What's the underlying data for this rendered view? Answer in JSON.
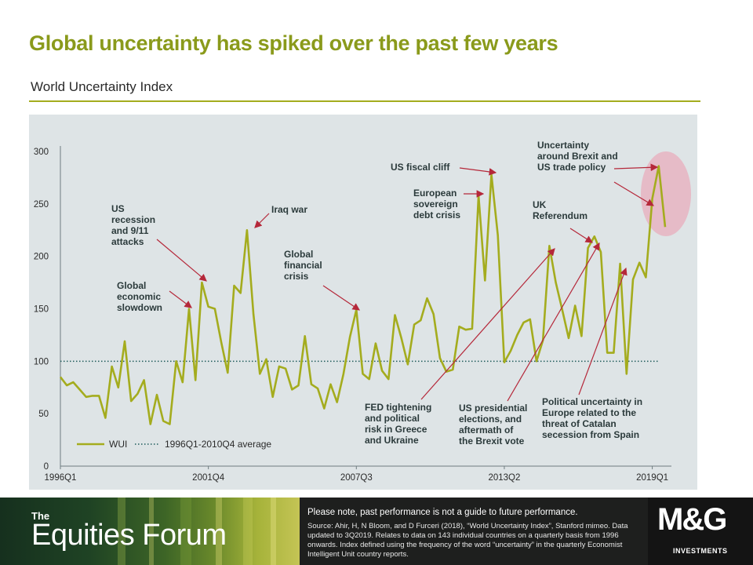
{
  "header": {
    "title": "Global uncertainty has spiked over the past few years",
    "subtitle": "World Uncertainty Index"
  },
  "chart_data": {
    "type": "line",
    "xlabel": "",
    "ylabel": "",
    "ylim": [
      0,
      300
    ],
    "yticks": [
      0,
      50,
      100,
      150,
      200,
      250,
      300
    ],
    "x_tick_labels": [
      {
        "index": 0,
        "label": "1996Q1"
      },
      {
        "index": 23,
        "label": "2001Q4"
      },
      {
        "index": 46,
        "label": "2007Q3"
      },
      {
        "index": 69,
        "label": "2013Q2"
      },
      {
        "index": 92,
        "label": "2019Q1"
      }
    ],
    "series": [
      {
        "name": "WUI",
        "color": "#a4ac1e",
        "values": [
          85,
          77,
          80,
          73,
          66,
          67,
          67,
          46,
          95,
          75,
          119,
          62,
          69,
          82,
          40,
          68,
          43,
          40,
          100,
          80,
          150,
          82,
          175,
          152,
          150,
          118,
          89,
          172,
          165,
          225,
          145,
          88,
          102,
          66,
          95,
          93,
          73,
          77,
          124,
          78,
          74,
          55,
          78,
          61,
          88,
          123,
          149,
          88,
          83,
          117,
          91,
          83,
          144,
          122,
          97,
          135,
          139,
          160,
          145,
          103,
          90,
          92,
          133,
          130,
          131,
          258,
          177,
          278,
          220,
          99,
          110,
          125,
          137,
          140,
          100,
          120,
          210,
          175,
          149,
          122,
          153,
          124,
          208,
          219,
          204,
          108,
          108,
          193,
          88,
          178,
          194,
          180,
          255,
          286,
          228
        ]
      },
      {
        "name": "1996Q1-2010Q4 average",
        "color": "#1f5c5c",
        "style": "dotted",
        "value": 100
      }
    ],
    "legend": "bottom-left",
    "grid": false,
    "annotations": [
      {
        "text": [
          "Global",
          "economic",
          "slowdown"
        ]
      },
      {
        "text": [
          "US",
          "recession",
          "and 9/11",
          "attacks"
        ]
      },
      {
        "text": [
          "Iraq war"
        ]
      },
      {
        "text": [
          "Global",
          "financial",
          "crisis"
        ]
      },
      {
        "text": [
          "FED tightening",
          "and political",
          "risk in Greece",
          "and Ukraine"
        ]
      },
      {
        "text": [
          "European",
          "sovereign",
          "debt crisis"
        ]
      },
      {
        "text": [
          "US fiscal cliff"
        ]
      },
      {
        "text": [
          "US presidential",
          "elections, and",
          "aftermath of",
          "the Brexit vote"
        ]
      },
      {
        "text": [
          "UK",
          "Referendum"
        ]
      },
      {
        "text": [
          "Uncertainty",
          "around Brexit and",
          "US trade policy"
        ]
      },
      {
        "text": [
          "Political uncertainty in",
          "Europe related to the",
          "threat of Catalan",
          "secession from Spain"
        ]
      }
    ]
  },
  "footer": {
    "brand_the": "The",
    "brand_name": "Equities Forum",
    "disclaimer": "Please note, past performance  is not a guide to future performance.",
    "source": "Source: Ahir, H, N Bloom,  and D Furceri (2018), “World Uncertainty Index”, Stanford mimeo.  Data updated to 3Q2019. Relates to data on 143 individual countries on a quarterly basis from 1996 onwards. Index defined using the frequency of the word “uncertainty” in the quarterly Economist Intelligent Unit country reports.",
    "logo": "M&G",
    "logo_sub": "INVESTMENTS"
  }
}
